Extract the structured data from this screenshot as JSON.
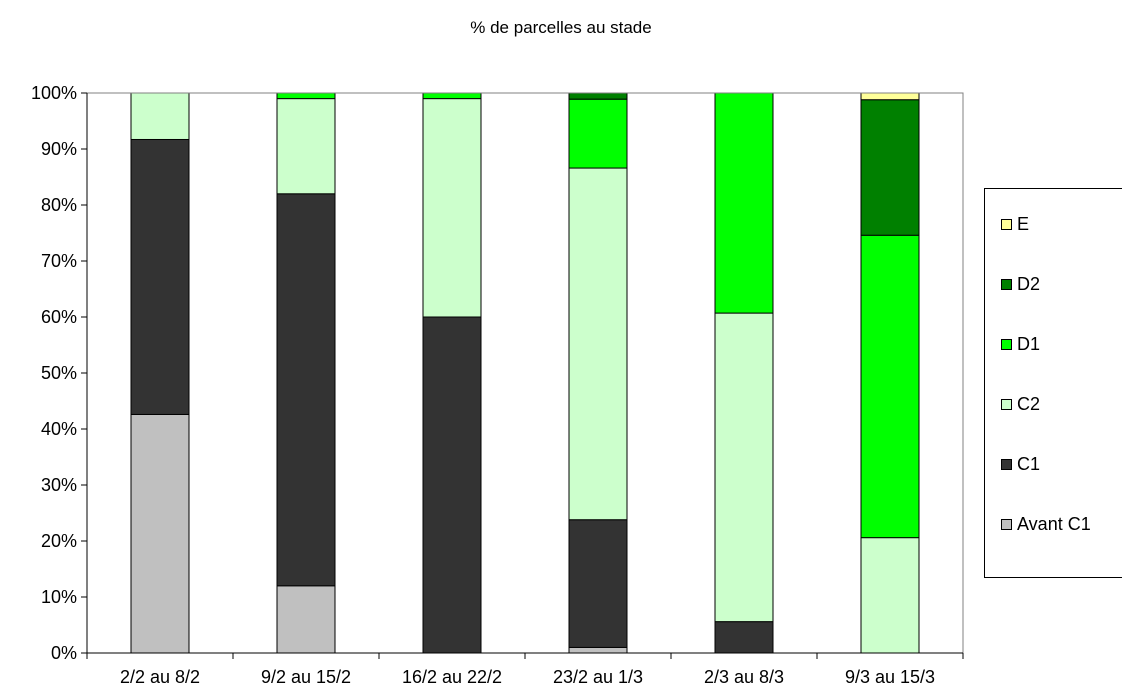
{
  "chart_data": {
    "type": "bar",
    "stacked": true,
    "title": "% de parcelles au stade",
    "categories": [
      "2/2 au 8/2",
      "9/2 au 15/2",
      "16/2 au 22/2",
      "23/2 au 1/3",
      "2/3 au 8/3",
      "9/3 au 15/3"
    ],
    "y_ticks": [
      "0%",
      "10%",
      "20%",
      "30%",
      "40%",
      "50%",
      "60%",
      "70%",
      "80%",
      "90%",
      "100%"
    ],
    "ylim": [
      0,
      100
    ],
    "legend_position": "right",
    "series": [
      {
        "name": "Avant C1",
        "color": "#c0c0c0",
        "values": [
          42.6,
          12,
          0,
          1,
          0,
          0
        ]
      },
      {
        "name": "C1",
        "color": "#333333",
        "values": [
          49.1,
          70,
          60,
          22.8,
          5.6,
          0
        ]
      },
      {
        "name": "C2",
        "color": "#ccffcc",
        "values": [
          8.3,
          17,
          39,
          62.8,
          55.1,
          20.6
        ]
      },
      {
        "name": "D1",
        "color": "#00ff00",
        "values": [
          0,
          1,
          1,
          12.3,
          39.3,
          54
        ]
      },
      {
        "name": "D2",
        "color": "#008000",
        "values": [
          0,
          0,
          0,
          1.1,
          0,
          24.2
        ]
      },
      {
        "name": "E",
        "color": "#ffff99",
        "values": [
          0,
          0,
          0,
          0,
          0,
          1.2
        ]
      }
    ]
  }
}
